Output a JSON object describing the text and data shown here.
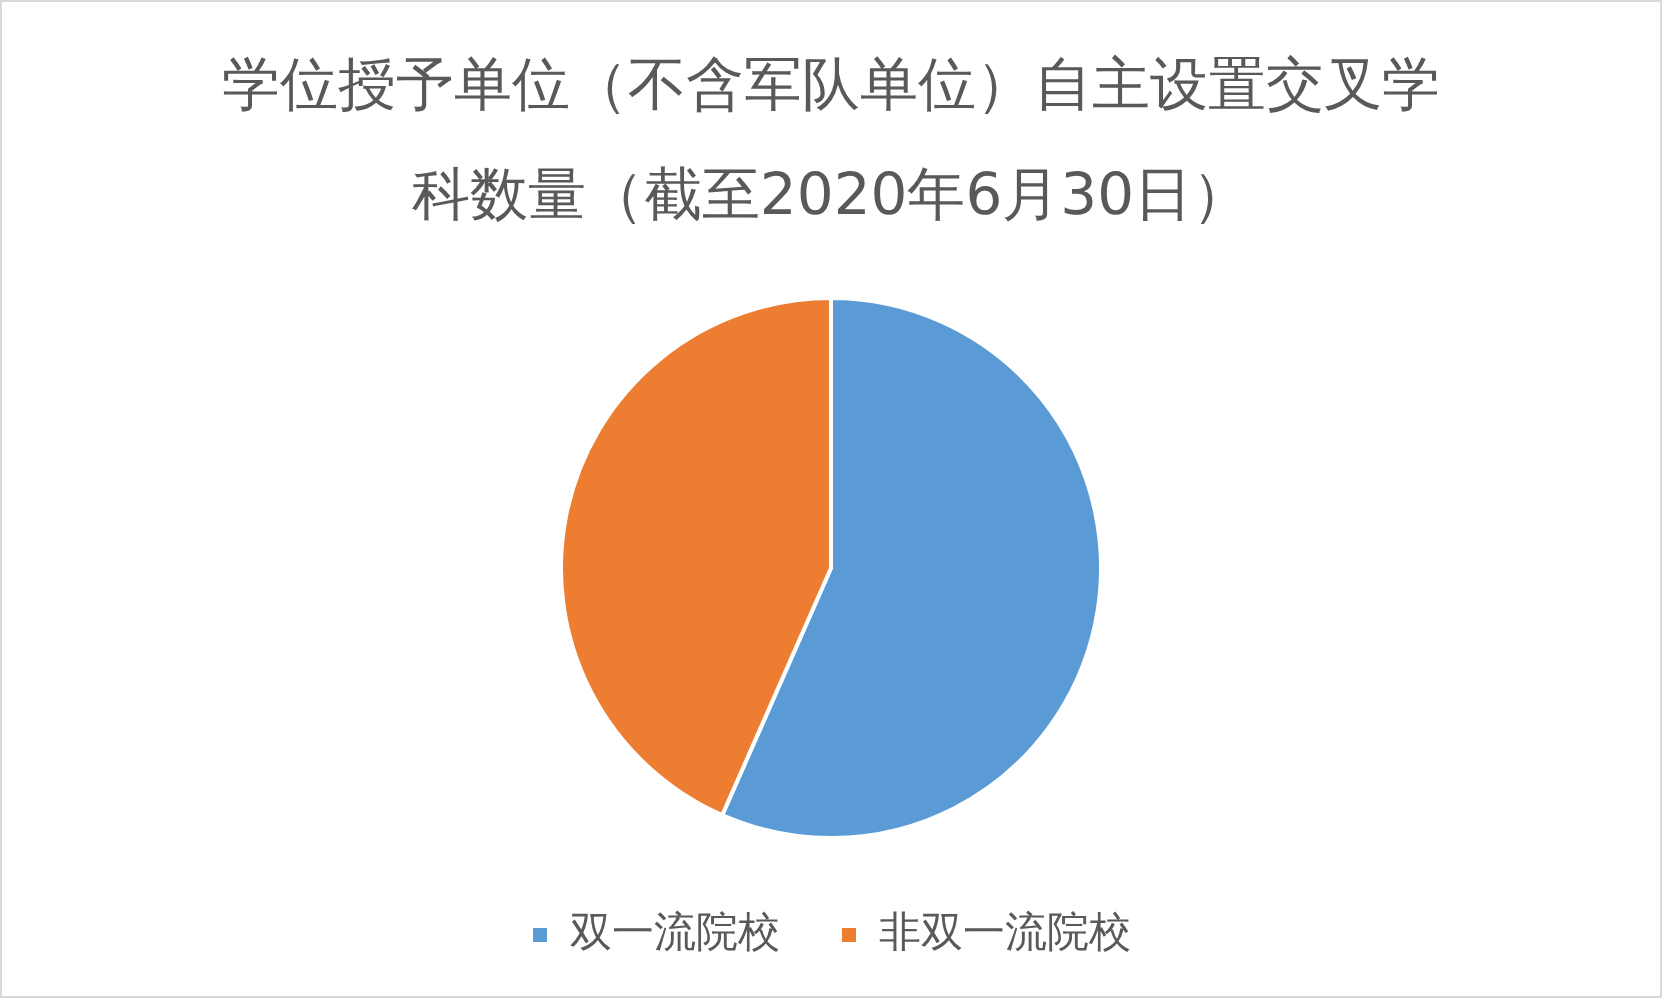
{
  "chart_data": {
    "type": "pie",
    "title": "学位授予单位（不含军队单位）自主设置交叉学科数量（截至2020年6月30日）",
    "categories": [
      "双一流院校",
      "非双一流院校"
    ],
    "values": [
      56.6,
      43.4
    ],
    "colors": [
      "#5b9bd5",
      "#ed7d31"
    ],
    "legend": "bottom"
  }
}
